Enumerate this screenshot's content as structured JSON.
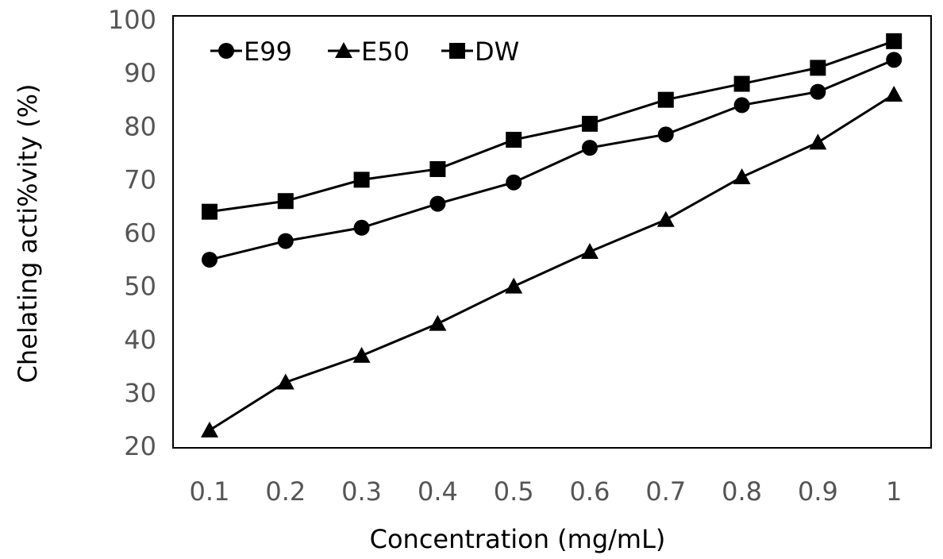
{
  "chart_data": {
    "type": "line",
    "title": "",
    "xlabel": "Concentration (mg/mL)",
    "ylabel": "Chelating acti%vity (%)",
    "categories": [
      "0.1",
      "0.2",
      "0.3",
      "0.4",
      "0.5",
      "0.6",
      "0.7",
      "0.8",
      "0.9",
      "1"
    ],
    "ylim": [
      20,
      100
    ],
    "yticks": [
      "20",
      "30",
      "40",
      "50",
      "60",
      "70",
      "80",
      "90",
      "100"
    ],
    "grid": false,
    "legend_position": "top-left",
    "series": [
      {
        "name": "E99",
        "marker": "circle",
        "values": [
          55,
          58.5,
          61,
          65.5,
          69.5,
          76,
          78.5,
          84,
          86.5,
          92.5
        ]
      },
      {
        "name": "E50",
        "marker": "triangle",
        "values": [
          23,
          32,
          37,
          43,
          50,
          56.5,
          62.5,
          70.5,
          77,
          86
        ]
      },
      {
        "name": "DW",
        "marker": "square",
        "values": [
          64,
          66,
          70,
          72,
          77.5,
          80.5,
          85,
          88,
          91,
          96
        ]
      }
    ],
    "colors": {
      "line": "#000000",
      "tick_text": "#555555",
      "frame": "#000000"
    }
  }
}
